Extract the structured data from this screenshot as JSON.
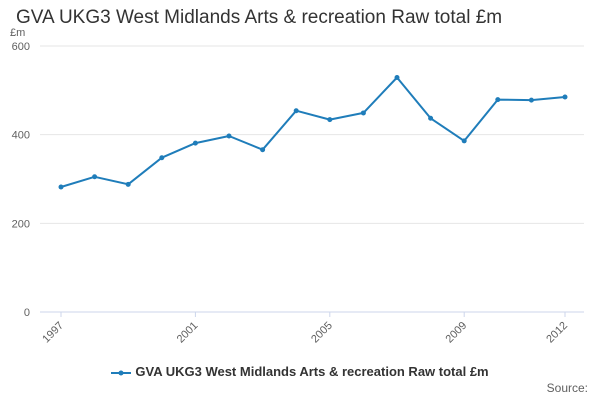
{
  "chart_data": {
    "type": "line",
    "title": "GVA UKG3 West Midlands Arts & recreation Raw total £m",
    "unit_label": "£m",
    "xlabel": "",
    "ylabel": "",
    "ylim": [
      0,
      600
    ],
    "yticks": [
      0,
      200,
      400,
      600
    ],
    "x": [
      1997,
      1998,
      1999,
      2000,
      2001,
      2002,
      2003,
      2004,
      2005,
      2006,
      2007,
      2008,
      2009,
      2010,
      2011,
      2012
    ],
    "xtick_labels": [
      "1997",
      "2001",
      "2005",
      "2009",
      "2012"
    ],
    "series": [
      {
        "name": "GVA UKG3 West Midlands Arts & recreation Raw total £m",
        "color": "#1f7dba",
        "values": [
          282,
          305,
          288,
          348,
          381,
          397,
          366,
          454,
          434,
          449,
          529,
          437,
          386,
          479,
          478,
          485
        ]
      }
    ],
    "grid": true,
    "legend_position": "bottom",
    "source_label": "Source:"
  }
}
